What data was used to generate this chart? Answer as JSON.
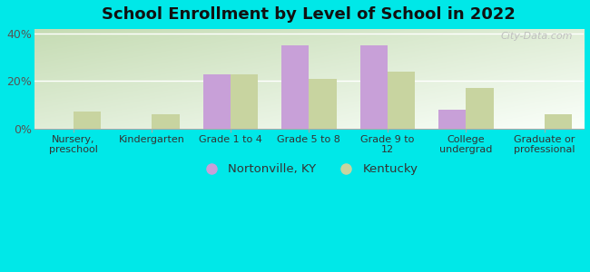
{
  "title": "School Enrollment by Level of School in 2022",
  "categories": [
    "Nursery,\npreschool",
    "Kindergarten",
    "Grade 1 to 4",
    "Grade 5 to 8",
    "Grade 9 to\n12",
    "College\nundergrad",
    "Graduate or\nprofessional"
  ],
  "nortonville": [
    0,
    0,
    23,
    35,
    35,
    8,
    0
  ],
  "kentucky": [
    7,
    6,
    23,
    21,
    24,
    17,
    6
  ],
  "nortonville_color": "#c8a0d8",
  "kentucky_color": "#c8d4a0",
  "background_color": "#00e8e8",
  "ylim": [
    0,
    42
  ],
  "yticks": [
    0,
    20,
    40
  ],
  "ytick_labels": [
    "0%",
    "20%",
    "40%"
  ],
  "bar_width": 0.35,
  "legend_labels": [
    "Nortonville, KY",
    "Kentucky"
  ],
  "watermark": "City-Data.com"
}
